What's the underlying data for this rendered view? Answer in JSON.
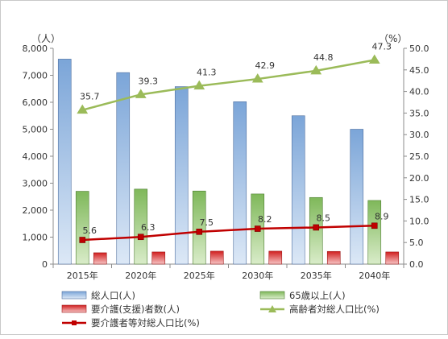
{
  "chart_data": {
    "type": "bar",
    "categories": [
      "2015年",
      "2020年",
      "2025年",
      "2030年",
      "2035年",
      "2040年"
    ],
    "left_unit": "（人）",
    "right_unit": "（%）",
    "ylim_left": [
      0,
      8000
    ],
    "ylim_right": [
      0,
      50
    ],
    "y_ticks_left": [
      "0",
      "1,000",
      "2,000",
      "3,000",
      "4,000",
      "5,000",
      "6,000",
      "7,000",
      "8,000"
    ],
    "y_ticks_right": [
      "0.0",
      "5.0",
      "10.0",
      "15.0",
      "20.0",
      "25.0",
      "30.0",
      "35.0",
      "40.0",
      "45.0",
      "50.0"
    ],
    "grid": false,
    "legend_position": "bottom",
    "series": [
      {
        "name": "総人口(人)",
        "kind": "bar",
        "axis": "left",
        "color": "#4f81bd",
        "values": [
          7600,
          7100,
          6580,
          6020,
          5500,
          5000
        ]
      },
      {
        "name": "65歳以上(人)",
        "kind": "bar",
        "axis": "left",
        "color": "#6aa34a",
        "values": [
          2700,
          2780,
          2710,
          2600,
          2470,
          2360
        ]
      },
      {
        "name": "要介護(支援)者数(人)",
        "kind": "bar",
        "axis": "left",
        "color": "#cc1f1f",
        "values": [
          420,
          450,
          480,
          480,
          470,
          450
        ]
      },
      {
        "name": "高齢者対総人口比(%)",
        "kind": "line",
        "axis": "right",
        "color": "#9bbb59",
        "marker": "triangle",
        "values": [
          35.7,
          39.3,
          41.3,
          42.9,
          44.8,
          47.3
        ],
        "labels": [
          "35.7",
          "39.3",
          "41.3",
          "42.9",
          "44.8",
          "47.3"
        ]
      },
      {
        "name": "要介護者等対総人口比(%)",
        "kind": "line",
        "axis": "right",
        "color": "#c00000",
        "marker": "square",
        "values": [
          5.6,
          6.3,
          7.5,
          8.2,
          8.5,
          8.9
        ],
        "labels": [
          "5.6",
          "6.3",
          "7.5",
          "8.2",
          "8.5",
          "8.9"
        ]
      }
    ]
  }
}
